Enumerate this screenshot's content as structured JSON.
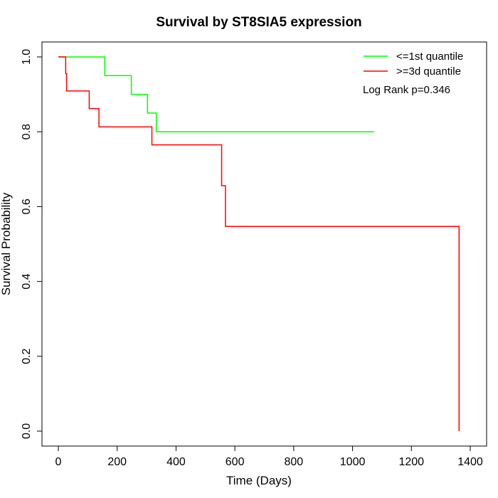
{
  "chart_data": {
    "type": "line",
    "title": "Survival by ST8SIA5 expression",
    "xlabel": "Time (Days)",
    "ylabel": "Survival Probability",
    "xlim": [
      0,
      1400
    ],
    "ylim": [
      0,
      1
    ],
    "xticks": [
      0,
      200,
      400,
      600,
      800,
      1000,
      1200,
      1400
    ],
    "yticks": [
      0.0,
      0.2,
      0.4,
      0.6,
      0.8,
      1.0
    ],
    "xtick_labels": [
      "0",
      "200",
      "400",
      "600",
      "800",
      "1000",
      "1200",
      "1400"
    ],
    "ytick_labels": [
      "0.0",
      "0.2",
      "0.4",
      "0.6",
      "0.8",
      "1.0"
    ],
    "grid": false,
    "legend_position": "top-right",
    "annotation": "Log Rank p=0.346",
    "series": [
      {
        "name": "<=1st quantile",
        "color": "#00ff00",
        "step": true,
        "x": [
          0,
          158,
          248,
          303,
          333,
          1073
        ],
        "y": [
          1.0,
          0.95,
          0.9,
          0.85,
          0.8,
          0.8
        ]
      },
      {
        "name": ">=3d quantile",
        "color": "#ff0000",
        "step": true,
        "x": [
          0,
          25,
          28,
          105,
          138,
          318,
          555,
          568,
          1362,
          1362
        ],
        "y": [
          1.0,
          0.955,
          0.909,
          0.862,
          0.813,
          0.765,
          0.656,
          0.547,
          0.547,
          0.0
        ]
      }
    ]
  }
}
